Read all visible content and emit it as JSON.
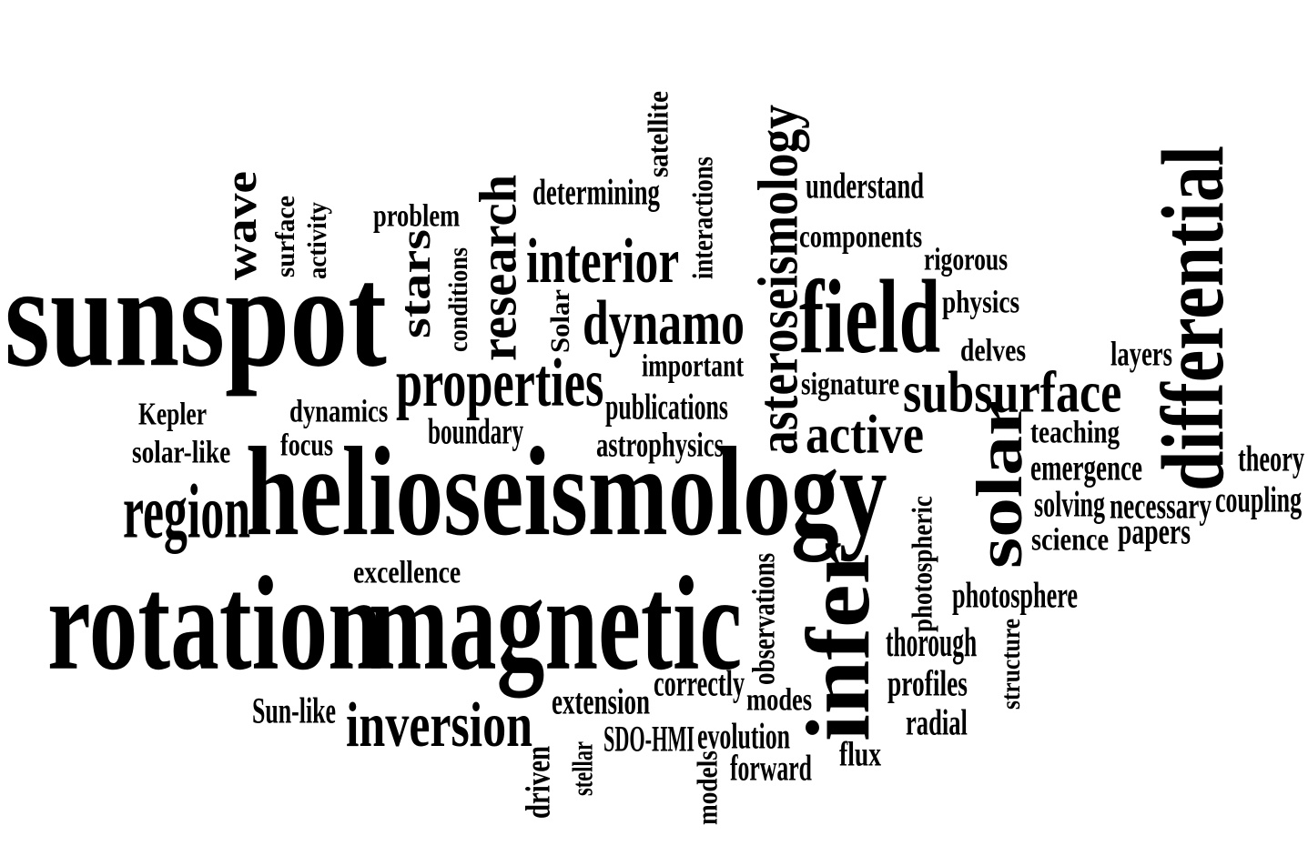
{
  "text_color": "#000000",
  "background_color": "#ffffff",
  "words": [
    {
      "key": "sunspot",
      "text": "sunspot",
      "vertical": false
    },
    {
      "key": "helioseismology",
      "text": "helioseismology",
      "vertical": false
    },
    {
      "key": "rotation",
      "text": "rotation",
      "vertical": false
    },
    {
      "key": "magnetic",
      "text": "magnetic",
      "vertical": false
    },
    {
      "key": "differential",
      "text": "differential",
      "vertical": true
    },
    {
      "key": "field",
      "text": "field",
      "vertical": false
    },
    {
      "key": "infer",
      "text": "infer",
      "vertical": true
    },
    {
      "key": "solar",
      "text": "solar",
      "vertical": true
    },
    {
      "key": "asteroseismology",
      "text": "asteroseismology",
      "vertical": true
    },
    {
      "key": "region",
      "text": "region",
      "vertical": false
    },
    {
      "key": "properties",
      "text": "properties",
      "vertical": false
    },
    {
      "key": "interior",
      "text": "interior",
      "vertical": false
    },
    {
      "key": "dynamo",
      "text": "dynamo",
      "vertical": false
    },
    {
      "key": "research",
      "text": "research",
      "vertical": true
    },
    {
      "key": "stars",
      "text": "stars",
      "vertical": true
    },
    {
      "key": "inversion",
      "text": "inversion",
      "vertical": false
    },
    {
      "key": "active",
      "text": "active",
      "vertical": false
    },
    {
      "key": "subsurface",
      "text": "subsurface",
      "vertical": false
    },
    {
      "key": "wave",
      "text": "wave",
      "vertical": true
    },
    {
      "key": "surface",
      "text": "surface",
      "vertical": true
    },
    {
      "key": "activity",
      "text": "activity",
      "vertical": true
    },
    {
      "key": "problem",
      "text": "problem",
      "vertical": false
    },
    {
      "key": "conditions",
      "text": "conditions",
      "vertical": true
    },
    {
      "key": "Solar_small",
      "text": "Solar",
      "vertical": true
    },
    {
      "key": "determining",
      "text": "determining",
      "vertical": false
    },
    {
      "key": "satellite",
      "text": "satellite",
      "vertical": true
    },
    {
      "key": "interactions",
      "text": "interactions",
      "vertical": true
    },
    {
      "key": "understand",
      "text": "understand",
      "vertical": false
    },
    {
      "key": "components",
      "text": "components",
      "vertical": false
    },
    {
      "key": "rigorous",
      "text": "rigorous",
      "vertical": false
    },
    {
      "key": "physics",
      "text": "physics",
      "vertical": false
    },
    {
      "key": "delves",
      "text": "delves",
      "vertical": false
    },
    {
      "key": "layers",
      "text": "layers",
      "vertical": false
    },
    {
      "key": "important",
      "text": "important",
      "vertical": false
    },
    {
      "key": "signature",
      "text": "signature",
      "vertical": false
    },
    {
      "key": "publications",
      "text": "publications",
      "vertical": false
    },
    {
      "key": "Kepler",
      "text": "Kepler",
      "vertical": false
    },
    {
      "key": "dynamics",
      "text": "dynamics",
      "vertical": false
    },
    {
      "key": "focus",
      "text": "focus",
      "vertical": false
    },
    {
      "key": "solar_like",
      "text": "solar-like",
      "vertical": false
    },
    {
      "key": "boundary",
      "text": "boundary",
      "vertical": false
    },
    {
      "key": "astrophysics",
      "text": "astrophysics",
      "vertical": false
    },
    {
      "key": "teaching",
      "text": "teaching",
      "vertical": false
    },
    {
      "key": "emergence",
      "text": "emergence",
      "vertical": false
    },
    {
      "key": "theory",
      "text": "theory",
      "vertical": false
    },
    {
      "key": "solving",
      "text": "solving",
      "vertical": false
    },
    {
      "key": "necessary",
      "text": "necessary",
      "vertical": false
    },
    {
      "key": "coupling",
      "text": "coupling",
      "vertical": false
    },
    {
      "key": "science",
      "text": "science",
      "vertical": false
    },
    {
      "key": "papers",
      "text": "papers",
      "vertical": false
    },
    {
      "key": "excellence",
      "text": "excellence",
      "vertical": false
    },
    {
      "key": "photospheric",
      "text": "photospheric",
      "vertical": true
    },
    {
      "key": "photosphere",
      "text": "photosphere",
      "vertical": false
    },
    {
      "key": "observations",
      "text": "observations",
      "vertical": true
    },
    {
      "key": "thorough",
      "text": "thorough",
      "vertical": false
    },
    {
      "key": "structure",
      "text": "structure",
      "vertical": true
    },
    {
      "key": "profiles",
      "text": "profiles",
      "vertical": false
    },
    {
      "key": "radial",
      "text": "radial",
      "vertical": false
    },
    {
      "key": "correctly",
      "text": "correctly",
      "vertical": false
    },
    {
      "key": "modes",
      "text": "modes",
      "vertical": false
    },
    {
      "key": "extension",
      "text": "extension",
      "vertical": false
    },
    {
      "key": "Sun_like",
      "text": "Sun-like",
      "vertical": false
    },
    {
      "key": "SDO_HMI",
      "text": "SDO-HMI",
      "vertical": false
    },
    {
      "key": "evolution",
      "text": "evolution",
      "vertical": false
    },
    {
      "key": "forward",
      "text": "forward",
      "vertical": false
    },
    {
      "key": "flux",
      "text": "flux",
      "vertical": false
    },
    {
      "key": "models",
      "text": "models",
      "vertical": true
    },
    {
      "key": "stellar",
      "text": "stellar",
      "vertical": true
    },
    {
      "key": "driven",
      "text": "driven",
      "vertical": true
    }
  ]
}
